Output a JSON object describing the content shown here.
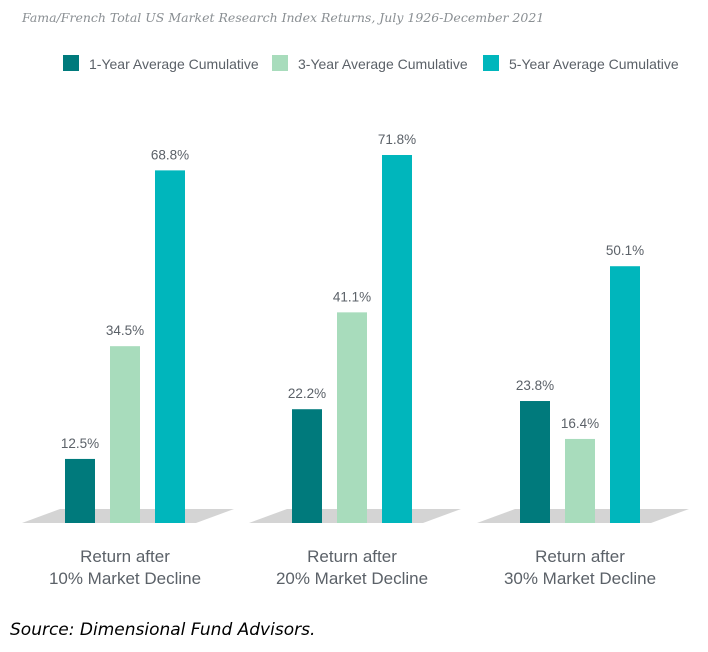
{
  "chart_data": {
    "type": "bar",
    "title": "Fama/French Total US Market Research Index Returns, July 1926-December 2021",
    "categories": [
      [
        "Return after",
        "10% Market Decline"
      ],
      [
        "Return after",
        "20% Market Decline"
      ],
      [
        "Return after",
        "30% Market Decline"
      ]
    ],
    "series": [
      {
        "name": "1-Year Average Cumulative",
        "color": "#007a7c",
        "values": [
          12.5,
          22.2,
          23.8
        ],
        "labels": [
          "12.5%",
          "22.2%",
          "23.8%"
        ]
      },
      {
        "name": "3-Year Average Cumulative",
        "color": "#a8dcbc",
        "values": [
          34.5,
          41.1,
          16.4
        ],
        "labels": [
          "34.5%",
          "41.1%",
          "16.4%"
        ]
      },
      {
        "name": "5-Year Average Cumulative",
        "color": "#00b6bc",
        "values": [
          68.8,
          71.8,
          50.1
        ],
        "labels": [
          "68.8%",
          "71.8%",
          "50.1%"
        ]
      }
    ],
    "ylim": [
      0,
      80
    ],
    "xlabel": "",
    "ylabel": "",
    "legend_position": "top",
    "grid": false
  },
  "source": "Source: Dimensional Fund Advisors."
}
